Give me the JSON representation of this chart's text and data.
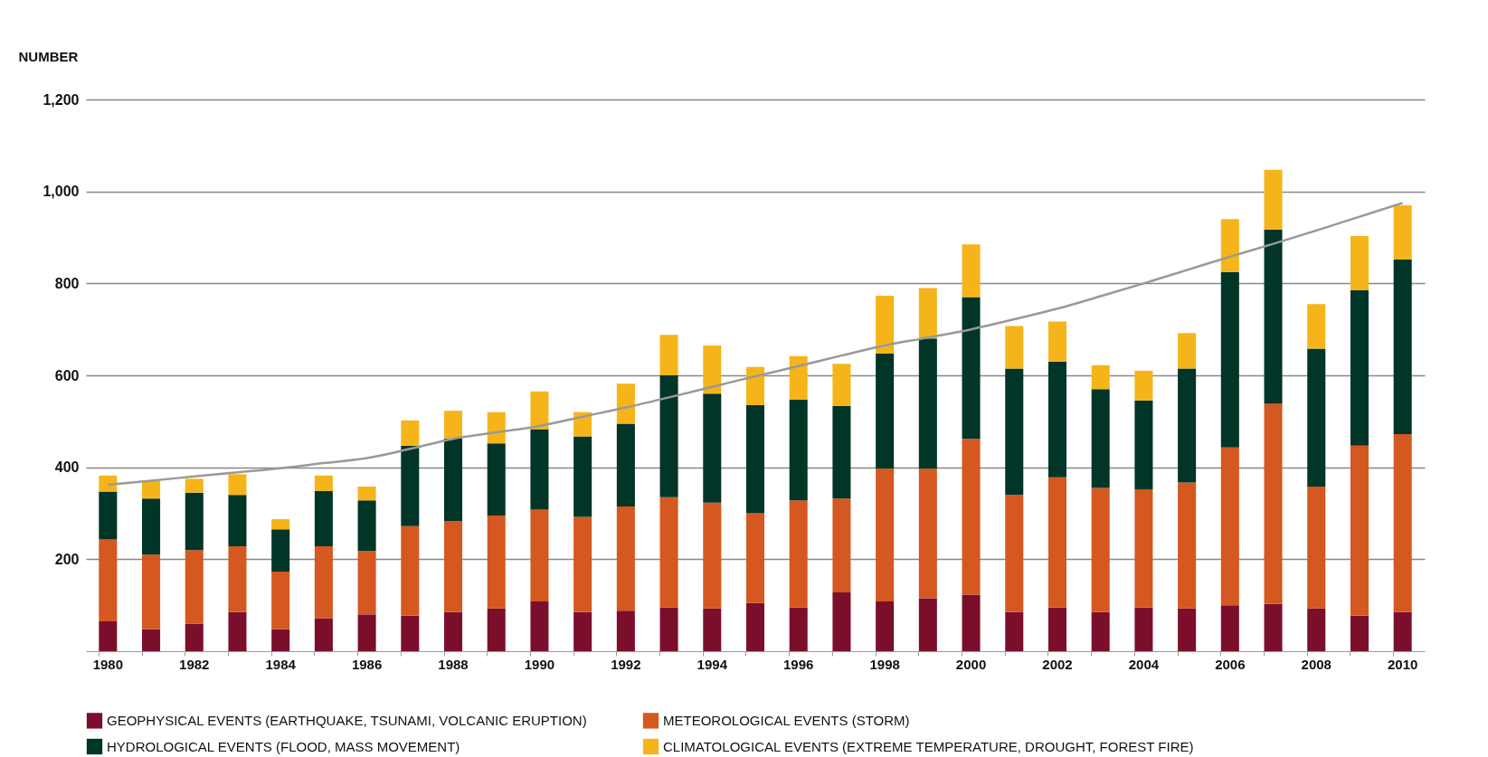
{
  "chart_data": {
    "type": "bar",
    "ylabel": "NUMBER",
    "stacked": true,
    "grid": "y",
    "legend": "bottom",
    "categories": [
      "1980",
      null,
      "1982",
      null,
      "1984",
      null,
      "1986",
      null,
      "1988",
      null,
      "1990",
      null,
      "1992",
      null,
      "1994",
      null,
      "1996",
      null,
      "1998",
      null,
      "2000",
      null,
      "2002",
      null,
      "2004",
      null,
      "2006",
      null,
      "2008",
      null,
      "2010"
    ],
    "ylim": [
      0,
      1200
    ],
    "yticks": [
      {
        "value": 200,
        "label": "200"
      },
      {
        "value": 400,
        "label": "400"
      },
      {
        "value": 600,
        "label": "600"
      },
      {
        "value": 800,
        "label": "800"
      },
      {
        "value": 1000,
        "label": "1,000"
      },
      {
        "value": 1200,
        "label": "1,200"
      }
    ],
    "series": [
      {
        "name": "GEOPHYSICAL EVENTS (EARTHQUAKE, TSUNAMI, VOLCANIC ERUPTION)",
        "color": "#7b0f2b",
        "values": [
          65,
          48,
          60,
          85,
          48,
          72,
          80,
          77,
          85,
          93,
          108,
          85,
          88,
          95,
          93,
          105,
          95,
          128,
          108,
          115,
          123,
          85,
          95,
          85,
          95,
          93,
          100,
          103,
          93,
          77,
          85
        ]
      },
      {
        "name": "METEOROLOGICAL EVENTS (STORM)",
        "color": "#d4581f",
        "values": [
          178,
          162,
          160,
          143,
          125,
          156,
          138,
          195,
          198,
          202,
          200,
          207,
          227,
          240,
          230,
          195,
          233,
          204,
          289,
          282,
          339,
          255,
          283,
          270,
          257,
          274,
          343,
          435,
          265,
          370,
          387
        ]
      },
      {
        "name": "HYDROLOGICAL EVENTS (FLOOD, MASS MOVEMENT)",
        "color": "#003527",
        "values": [
          104,
          122,
          125,
          112,
          92,
          120,
          110,
          175,
          180,
          157,
          175,
          175,
          180,
          265,
          237,
          235,
          219,
          201,
          250,
          283,
          308,
          275,
          252,
          215,
          193,
          248,
          382,
          379,
          300,
          338,
          380
        ]
      },
      {
        "name": "CLIMATOLOGICAL EVENTS (EXTREME TEMPERATURE, DROUGHT, FOREST FIRE)",
        "color": "#f5b51a",
        "values": [
          35,
          38,
          30,
          45,
          22,
          34,
          30,
          55,
          60,
          68,
          82,
          53,
          87,
          88,
          105,
          83,
          95,
          92,
          126,
          110,
          115,
          92,
          87,
          52,
          65,
          77,
          115,
          130,
          97,
          118,
          118
        ]
      },
      {
        "type": "line",
        "color": "#999999",
        "values": [
          362,
          371,
          380,
          389,
          398,
          409,
          420,
          440,
          462,
          476,
          490,
          510,
          530,
          552,
          575,
          598,
          620,
          643,
          665,
          682,
          700,
          722,
          745,
          772,
          800,
          829,
          858,
          886,
          915,
          945,
          975
        ]
      }
    ]
  }
}
